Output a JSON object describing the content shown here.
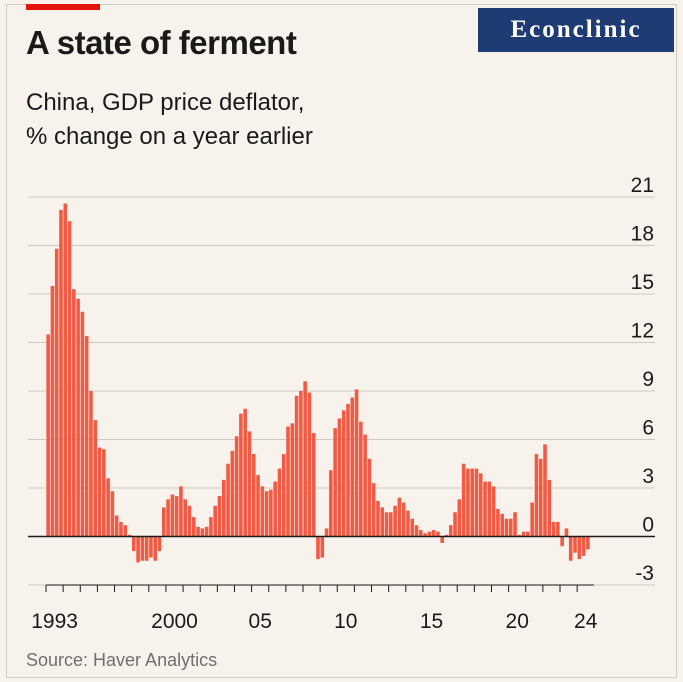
{
  "badge": {
    "text": "Econclinic"
  },
  "header": {
    "title": "A state of ferment",
    "subtitle_line1": "China, GDP price deflator,",
    "subtitle_line2": "% change on a year earlier"
  },
  "source": "Source: Haver Analytics",
  "colors": {
    "bar": "#f15b46",
    "grid": "#cfcac1",
    "zero": "#1a1a1a",
    "brand": "#e3120b",
    "badge": "#1f3b73"
  },
  "chart_data": {
    "type": "bar",
    "title": "A state of ferment",
    "subtitle": "China, GDP price deflator, % change on a year earlier",
    "xlabel": "",
    "ylabel": "% change on a year earlier",
    "frequency": "quarterly",
    "start": "1993 Q1",
    "ylim": [
      -3,
      21
    ],
    "yticks": [
      21,
      18,
      15,
      12,
      9,
      6,
      3,
      0,
      -3
    ],
    "xtick_labels": [
      {
        "label": "1993",
        "year": 1993
      },
      {
        "label": "2000",
        "year": 2000
      },
      {
        "label": "05",
        "year": 2005
      },
      {
        "label": "10",
        "year": 2010
      },
      {
        "label": "15",
        "year": 2015
      },
      {
        "label": "20",
        "year": 2020
      },
      {
        "label": "24",
        "year": 2024
      }
    ],
    "values": [
      12.5,
      15.5,
      17.8,
      20.2,
      20.6,
      19.5,
      15.3,
      14.7,
      13.9,
      12.4,
      9.0,
      7.2,
      5.5,
      5.4,
      3.6,
      2.8,
      1.3,
      0.9,
      0.7,
      0.1,
      -0.9,
      -1.6,
      -1.5,
      -1.5,
      -1.3,
      -1.5,
      -0.9,
      1.8,
      2.3,
      2.6,
      2.5,
      3.1,
      2.3,
      1.9,
      1.2,
      0.6,
      0.5,
      0.6,
      1.2,
      1.9,
      2.5,
      3.5,
      4.5,
      5.3,
      6.2,
      7.6,
      7.9,
      6.5,
      5.1,
      3.8,
      3.1,
      2.8,
      2.9,
      3.4,
      4.2,
      5.1,
      6.8,
      7.0,
      8.7,
      9.0,
      9.6,
      8.9,
      6.4,
      -1.4,
      -1.3,
      0.5,
      4.1,
      6.7,
      7.3,
      7.8,
      8.2,
      8.6,
      9.1,
      7.1,
      6.3,
      4.8,
      3.3,
      2.2,
      1.8,
      1.5,
      1.5,
      1.9,
      2.4,
      2.1,
      1.6,
      1.1,
      0.7,
      0.4,
      0.2,
      0.3,
      0.4,
      0.3,
      -0.4,
      0.1,
      0.7,
      1.5,
      2.3,
      4.5,
      4.2,
      4.2,
      4.2,
      3.9,
      3.4,
      3.4,
      3.1,
      1.7,
      1.4,
      1.1,
      1.1,
      1.5,
      0.1,
      0.3,
      0.3,
      2.1,
      5.1,
      4.8,
      5.7,
      3.5,
      0.9,
      0.9,
      -0.6,
      0.5,
      -1.5,
      -1.0,
      -1.4,
      -1.2,
      -0.8
    ]
  }
}
